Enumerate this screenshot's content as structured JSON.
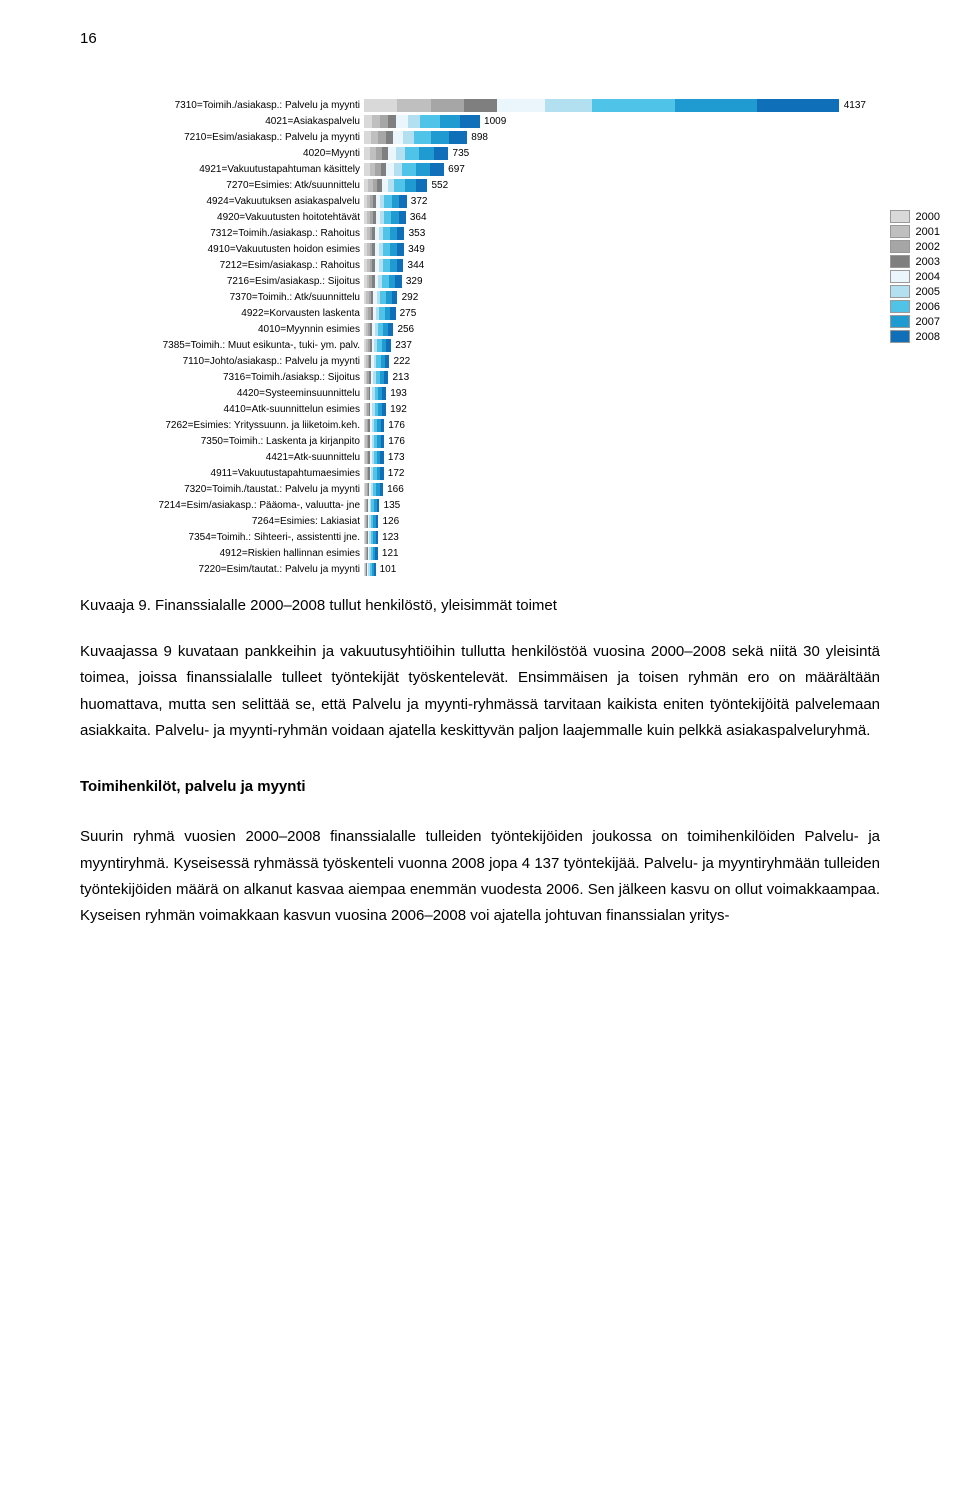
{
  "page_number": "16",
  "chart": {
    "type": "bar",
    "scale": 0.115,
    "categories": [
      {
        "label": "7310=Toimih./asiakasp.: Palvelu ja myynti",
        "total": 4137
      },
      {
        "label": "4021=Asiakaspalvelu",
        "total": 1009
      },
      {
        "label": "7210=Esim/asiakasp.: Palvelu ja myynti",
        "total": 898
      },
      {
        "label": "4020=Myynti",
        "total": 735
      },
      {
        "label": "4921=Vakuutustapahtuman käsittely",
        "total": 697
      },
      {
        "label": "7270=Esimies: Atk/suunnittelu",
        "total": 552
      },
      {
        "label": "4924=Vakuutuksen asiakaspalvelu",
        "total": 372
      },
      {
        "label": "4920=Vakuutusten hoitotehtävät",
        "total": 364
      },
      {
        "label": "7312=Toimih./asiakasp.: Rahoitus",
        "total": 353
      },
      {
        "label": "4910=Vakuutusten hoidon esimies",
        "total": 349
      },
      {
        "label": "7212=Esim/asiakasp.: Rahoitus",
        "total": 344
      },
      {
        "label": "7216=Esim/asiakasp.: Sijoitus",
        "total": 329
      },
      {
        "label": "7370=Toimih.: Atk/suunnittelu",
        "total": 292
      },
      {
        "label": "4922=Korvausten laskenta",
        "total": 275
      },
      {
        "label": "4010=Myynnin esimies",
        "total": 256
      },
      {
        "label": "7385=Toimih.: Muut esikunta-, tuki- ym. palv.",
        "total": 237
      },
      {
        "label": "7110=Johto/asiakasp.: Palvelu ja myynti",
        "total": 222
      },
      {
        "label": "7316=Toimih./asiaksp.: Sijoitus",
        "total": 213
      },
      {
        "label": "4420=Systeeminsuunnittelu",
        "total": 193
      },
      {
        "label": "4410=Atk-suunnittelun esimies",
        "total": 192
      },
      {
        "label": "7262=Esimies: Yrityssuunn. ja liiketoim.keh.",
        "total": 176
      },
      {
        "label": "7350=Toimih.: Laskenta ja kirjanpito",
        "total": 176
      },
      {
        "label": "4421=Atk-suunnittelu",
        "total": 173
      },
      {
        "label": "4911=Vakuutustapahtumaesimies",
        "total": 172
      },
      {
        "label": "7320=Toimih./taustat.: Palvelu ja myynti",
        "total": 166
      },
      {
        "label": "7214=Esim/asiakasp.: Pääoma-, valuutta- jne",
        "total": 135
      },
      {
        "label": "7264=Esimies: Lakiasiat",
        "total": 126
      },
      {
        "label": "7354=Toimih.: Sihteeri-, assistentti jne.",
        "total": 123
      },
      {
        "label": "4912=Riskien hallinnan esimies",
        "total": 121
      },
      {
        "label": "7220=Esim/tautat.: Palvelu ja myynti",
        "total": 101
      }
    ],
    "year_colors": {
      "2000": "#d9d9d9",
      "2001": "#bfbfbf",
      "2002": "#a6a6a6",
      "2003": "#7f7f7f",
      "2004": "#eaf6fb",
      "2005": "#b3e0f0",
      "2006": "#4fc3e8",
      "2007": "#1f9bd1",
      "2008": "#0f6fb8"
    },
    "legend_years": [
      "2000",
      "2001",
      "2002",
      "2003",
      "2004",
      "2005",
      "2006",
      "2007",
      "2008"
    ]
  },
  "caption": "Kuvaaja 9. Finanssialalle 2000–2008 tullut henkilöstö, yleisimmät toimet",
  "paragraphs": {
    "p1": "Kuvaajassa 9 kuvataan pankkeihin ja vakuutusyhtiöihin tullutta henkilöstöä vuosina 2000–2008 sekä niitä 30 yleisintä toimea, joissa finanssialalle tulleet työntekijät työskentelevät. Ensimmäisen ja toisen ryhmän ero on määrältään huomattava, mutta sen selittää se, että Palvelu ja myynti-ryhmässä tarvitaan kaikista eniten työntekijöitä palvelemaan asiakkaita. Palvelu- ja myynti-ryhmän voidaan ajatella keskittyvän paljon laajemmalle kuin pelkkä asiakaspalvelu­ryhmä.",
    "subheading": "Toimihenkilöt, palvelu ja myynti",
    "p2": "Suurin ryhmä vuosien 2000–2008 finanssialalle tulleiden työntekijöiden joukossa on toimihenkilöiden Palvelu- ja myyntiryhmä. Kyseisessä ryhmässä työskenteli vuonna 2008 jopa 4 137 työntekijää. Palvelu- ja myyntiryhmään tulleiden työntekijöiden määrä on alkanut kasvaa aiempaa enemmän vuodesta 2006. Sen jälkeen kasvu on ollut voimakkaampaa. Kyseisen ryhmän voimakkaan kasvun vuosina 2006–2008 voi ajatella johtuvan finanssialan yritys-"
  }
}
